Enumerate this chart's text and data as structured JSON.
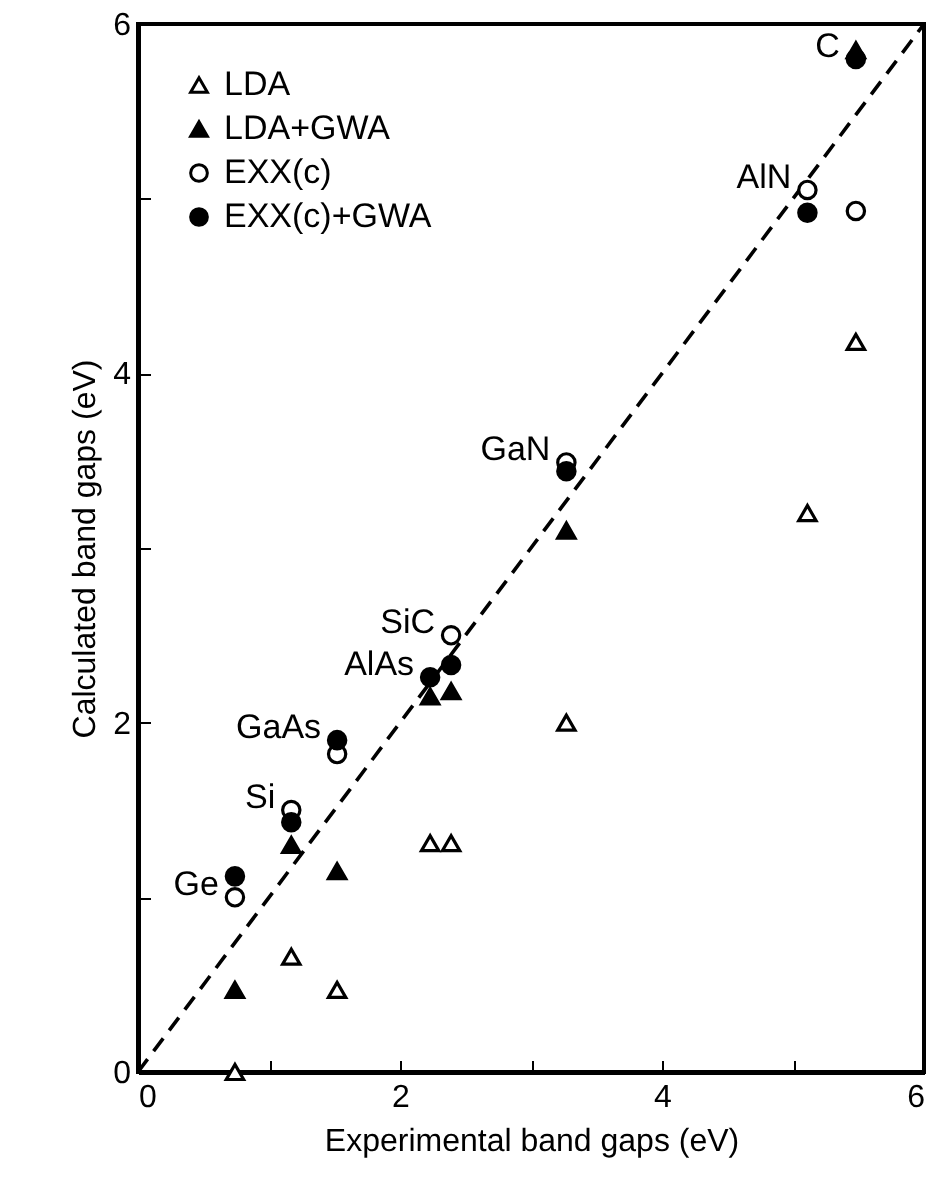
{
  "chart_data": {
    "type": "scatter",
    "xlabel": "Experimental band gaps (eV)",
    "ylabel": "Calculated band gaps (eV)",
    "xlim": [
      0,
      6
    ],
    "ylim": [
      0,
      6
    ],
    "xticks": [
      0,
      {
        "value": 1,
        "label": null
      },
      2,
      {
        "value": 3,
        "label": null
      },
      4,
      {
        "value": 5,
        "label": null
      },
      6
    ],
    "yticks": [
      0,
      {
        "value": 1,
        "label": null
      },
      2,
      {
        "value": 3,
        "label": null
      },
      4,
      {
        "value": 5,
        "label": null
      },
      6
    ],
    "x": [
      0.74,
      1.17,
      1.52,
      2.23,
      2.39,
      3.27,
      5.11,
      5.48
    ],
    "series": [
      {
        "name": "LDA",
        "color": "#ffffff",
        "marker": "triangle",
        "values": [
          0.0,
          0.66,
          0.47,
          1.31,
          1.31,
          2.0,
          3.2,
          4.18
        ]
      },
      {
        "name": "LDA+GWA",
        "color": "#000000",
        "marker": "triangle",
        "values": [
          0.47,
          1.3,
          1.15,
          2.15,
          2.18,
          3.1,
          null,
          5.85
        ]
      },
      {
        "name": "EXX(c)",
        "color": "#ffffff",
        "marker": "circle",
        "values": [
          1.0,
          1.5,
          1.82,
          null,
          2.5,
          3.49,
          5.05,
          4.93
        ]
      },
      {
        "name": "EXX(c)+GWA",
        "color": "#000000",
        "marker": "circle",
        "values": [
          1.12,
          1.43,
          1.9,
          2.26,
          2.33,
          3.44,
          4.92,
          5.8
        ]
      },
      {
        "type": "line",
        "color": "#000000",
        "line_style": "dashed",
        "marker": "none",
        "x": [
          0,
          6
        ],
        "values": [
          0,
          6
        ]
      }
    ],
    "annotations": [
      {
        "text": "Ge",
        "x": 0.74,
        "y": 1.0
      },
      {
        "text": "Si",
        "x": 1.17,
        "y": 1.5
      },
      {
        "text": "GaAs",
        "x": 1.52,
        "y": 1.9
      },
      {
        "text": "AlAs",
        "x": 2.23,
        "y": 2.26
      },
      {
        "text": "SiC",
        "x": 2.39,
        "y": 2.5
      },
      {
        "text": "GaN",
        "x": 3.27,
        "y": 3.49
      },
      {
        "text": "AlN",
        "x": 5.11,
        "y": 5.05
      },
      {
        "text": "C",
        "x": 5.48,
        "y": 5.8
      }
    ],
    "legend": "top left",
    "grid": false
  }
}
